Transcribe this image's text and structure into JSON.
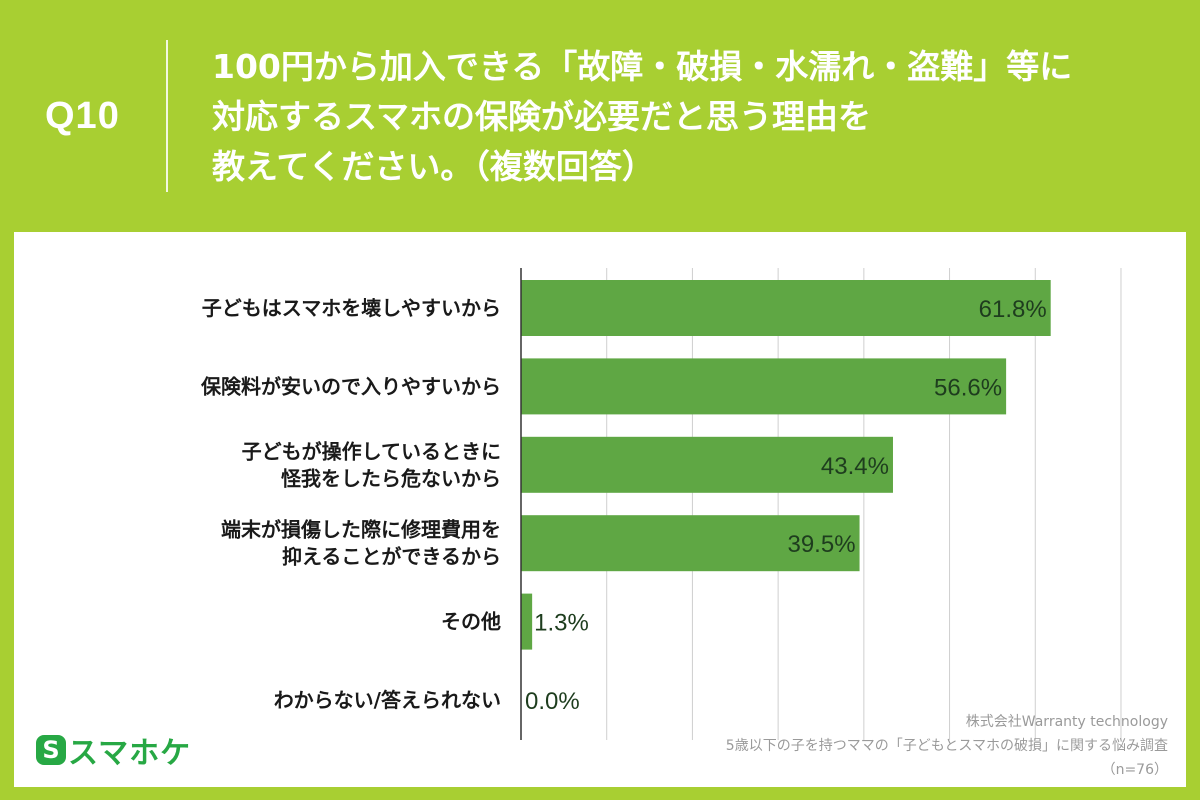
{
  "question": {
    "number": "Q10",
    "title_lines": [
      "100円から加入できる「故障・破損・水濡れ・盗難」等に",
      "対応するスマホの保険が必要だと思う理由を",
      "教えてください。（複数回答）"
    ]
  },
  "chart_data": {
    "type": "bar",
    "orientation": "horizontal",
    "categories": [
      [
        "子どもはスマホを壊しやすいから"
      ],
      [
        "保険料が安いので入りやすいから"
      ],
      [
        "子どもが操作しているときに",
        "怪我をしたら危ないから"
      ],
      [
        "端末が損傷した際に修理費用を",
        "抑えることができるから"
      ],
      [
        "その他"
      ],
      [
        "わからない/答えられない"
      ]
    ],
    "values": [
      61.8,
      56.6,
      43.4,
      39.5,
      1.3,
      0.0
    ],
    "value_labels": [
      "61.8%",
      "56.6%",
      "43.4%",
      "39.5%",
      "1.3%",
      "0.0%"
    ],
    "xlim": [
      0,
      70
    ],
    "gridlines": [
      0,
      10,
      20,
      30,
      40,
      50,
      60,
      70
    ],
    "grid": true,
    "bar_color": "#5fa744",
    "label_color": "#1e3d1e"
  },
  "logo": {
    "mark": "S",
    "text": "スマホケ"
  },
  "source": {
    "company": "株式会社Warranty technology",
    "survey": "5歳以下の子を持つママの「子どもとスマホの破損」に関する悩み調査",
    "sample": "（n=76）"
  },
  "colors": {
    "background": "#a8cf32",
    "brand_green": "#27a844"
  }
}
